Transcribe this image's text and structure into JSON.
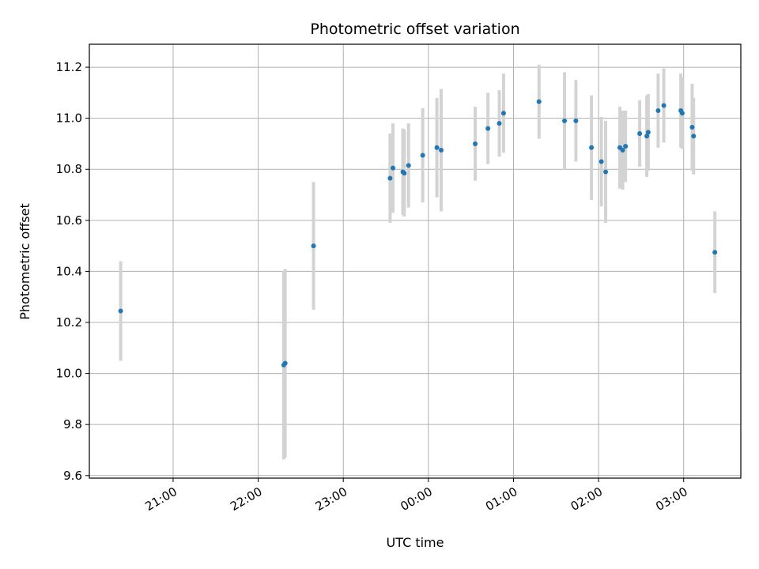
{
  "chart_data": {
    "type": "scatter",
    "title": "Photometric offset variation",
    "xlabel": "UTC time",
    "ylabel": "Photometric offset",
    "grid": true,
    "x_ticks": [
      "21:00",
      "22:00",
      "23:00",
      "00:00",
      "01:00",
      "02:00",
      "03:00"
    ],
    "x_tick_hours": [
      21,
      22,
      23,
      24,
      25,
      26,
      27
    ],
    "xlim_hours": [
      20.0153,
      27.6717
    ],
    "y_ticks": [
      "9.6",
      "9.8",
      "10.0",
      "10.2",
      "10.4",
      "10.6",
      "10.8",
      "11.0",
      "11.2"
    ],
    "ylim": [
      9.59,
      11.29
    ],
    "point_color": "#1f77b4",
    "errorbar_color": "#d3d3d3",
    "points": [
      {
        "x": "20:23",
        "y": 10.245,
        "err": 0.195
      },
      {
        "x": "22:18",
        "y": 10.033,
        "err": 0.37
      },
      {
        "x": "22:19",
        "y": 10.04,
        "err": 0.37
      },
      {
        "x": "22:39",
        "y": 10.5,
        "err": 0.25
      },
      {
        "x": "23:33",
        "y": 10.765,
        "err": 0.175
      },
      {
        "x": "23:35",
        "y": 10.805,
        "err": 0.175
      },
      {
        "x": "23:42",
        "y": 10.79,
        "err": 0.17
      },
      {
        "x": "23:43",
        "y": 10.785,
        "err": 0.17
      },
      {
        "x": "23:46",
        "y": 10.815,
        "err": 0.165
      },
      {
        "x": "23:56",
        "y": 10.855,
        "err": 0.185
      },
      {
        "x": "00:06",
        "y": 10.885,
        "err": 0.195
      },
      {
        "x": "00:09",
        "y": 10.875,
        "err": 0.24
      },
      {
        "x": "00:33",
        "y": 10.9,
        "err": 0.145
      },
      {
        "x": "00:42",
        "y": 10.96,
        "err": 0.14
      },
      {
        "x": "00:50",
        "y": 10.98,
        "err": 0.13
      },
      {
        "x": "00:53",
        "y": 11.02,
        "err": 0.155
      },
      {
        "x": "01:18",
        "y": 11.065,
        "err": 0.145
      },
      {
        "x": "01:36",
        "y": 10.99,
        "err": 0.19
      },
      {
        "x": "01:44",
        "y": 10.99,
        "err": 0.16
      },
      {
        "x": "01:55",
        "y": 10.885,
        "err": 0.205
      },
      {
        "x": "02:02",
        "y": 10.83,
        "err": 0.175
      },
      {
        "x": "02:05",
        "y": 10.79,
        "err": 0.2
      },
      {
        "x": "02:15",
        "y": 10.885,
        "err": 0.16
      },
      {
        "x": "02:17",
        "y": 10.875,
        "err": 0.155
      },
      {
        "x": "02:19",
        "y": 10.89,
        "err": 0.14
      },
      {
        "x": "02:29",
        "y": 10.94,
        "err": 0.13
      },
      {
        "x": "02:34",
        "y": 10.93,
        "err": 0.16
      },
      {
        "x": "02:35",
        "y": 10.945,
        "err": 0.15
      },
      {
        "x": "02:42",
        "y": 11.03,
        "err": 0.145
      },
      {
        "x": "02:46",
        "y": 11.05,
        "err": 0.145
      },
      {
        "x": "02:58",
        "y": 11.03,
        "err": 0.145
      },
      {
        "x": "02:59",
        "y": 11.02,
        "err": 0.14
      },
      {
        "x": "03:06",
        "y": 10.965,
        "err": 0.17
      },
      {
        "x": "03:07",
        "y": 10.93,
        "err": 0.15
      },
      {
        "x": "03:22",
        "y": 10.475,
        "err": 0.16
      }
    ]
  }
}
